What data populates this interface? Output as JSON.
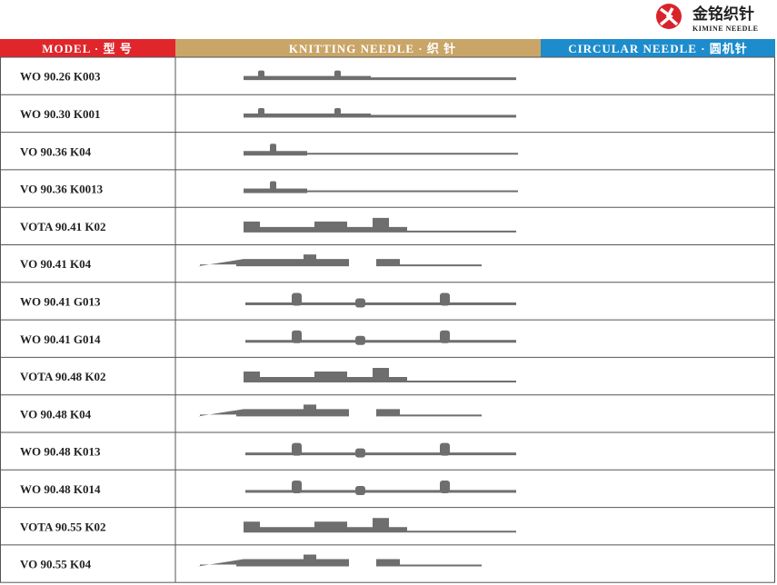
{
  "header": {
    "brand_cn": "金铭织针",
    "brand_en": "KIMINE NEEDLE"
  },
  "columns": [
    "MODEL · 型 号",
    "KNITTING NEEDLE · 织 针",
    "CIRCULAR NEEDLE · 圆机针"
  ],
  "rows": [
    "WO 90.26 K003",
    "WO 90.30 K001",
    "VO 90.36 K04",
    "VO 90.36 K0013",
    "VOTA 90.41 K02",
    "VO 90.41 K04",
    "WO 90.41 G013",
    "WO 90.41 G014",
    "VOTA 90.48 K02",
    "VO 90.48 K04",
    "WO 90.48 K013",
    "WO 90.48 K014",
    "VOTA 90.55 K02",
    "VO 90.55 K04"
  ]
}
